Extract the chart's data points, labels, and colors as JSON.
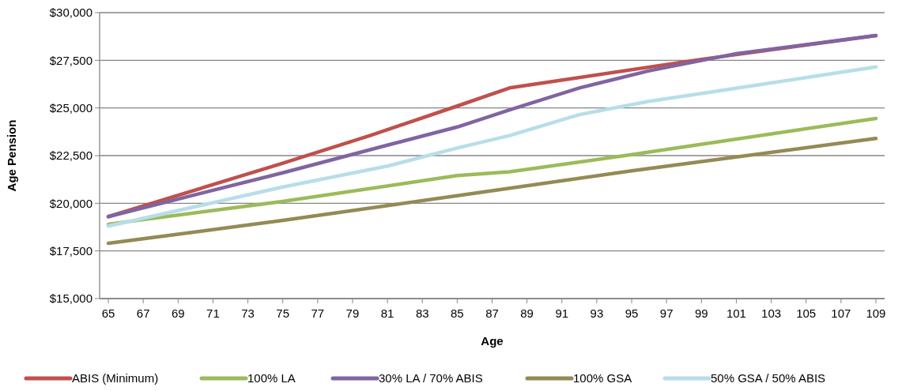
{
  "chart_data": {
    "type": "line",
    "xlabel": "Age",
    "ylabel": "Age Pension",
    "xlim": [
      64.5,
      109.5
    ],
    "xticks": [
      65,
      67,
      69,
      71,
      73,
      75,
      77,
      79,
      81,
      83,
      85,
      87,
      89,
      91,
      93,
      95,
      97,
      99,
      101,
      103,
      105,
      107,
      109
    ],
    "ylim": [
      15000,
      30000
    ],
    "yticks": [
      {
        "value": 15000,
        "label": "$15,000"
      },
      {
        "value": 17500,
        "label": "$17,500"
      },
      {
        "value": 20000,
        "label": "$20,000"
      },
      {
        "value": 22500,
        "label": "$22,500"
      },
      {
        "value": 25000,
        "label": "$25,000"
      },
      {
        "value": 27500,
        "label": "$27,500"
      },
      {
        "value": 30000,
        "label": "$30,000"
      }
    ],
    "grid": "y",
    "legend": "bottom",
    "line_style": "solid",
    "marker": "none",
    "series": [
      {
        "name": "ABIS (Minimum)",
        "color": "#c0504d",
        "x": [
          65,
          75,
          80,
          85,
          88,
          99,
          109
        ],
        "values": [
          19300,
          22100,
          23550,
          25100,
          26050,
          27550,
          28800
        ]
      },
      {
        "name": "100% LA",
        "color": "#9bbb59",
        "x": [
          65,
          75,
          85,
          88,
          95,
          109
        ],
        "values": [
          18900,
          20100,
          21450,
          21650,
          22550,
          24450
        ]
      },
      {
        "name": "30% LA / 70% ABIS",
        "color": "#8064a2",
        "x": [
          65,
          75,
          81,
          85,
          88,
          92,
          96,
          101,
          109
        ],
        "values": [
          19300,
          21600,
          23050,
          24000,
          24900,
          26050,
          26950,
          27850,
          28800
        ]
      },
      {
        "name": "100% GSA",
        "color": "#948a54",
        "x": [
          65,
          75,
          85,
          95,
          109
        ],
        "values": [
          17900,
          19100,
          20400,
          21700,
          23400
        ]
      },
      {
        "name": "50% GSA / 50% ABIS",
        "color": "#b7dee8",
        "x": [
          65,
          75,
          81,
          85,
          88,
          92,
          96,
          100,
          109
        ],
        "values": [
          18800,
          20850,
          21950,
          22900,
          23550,
          24650,
          25350,
          25900,
          27150
        ]
      }
    ]
  }
}
